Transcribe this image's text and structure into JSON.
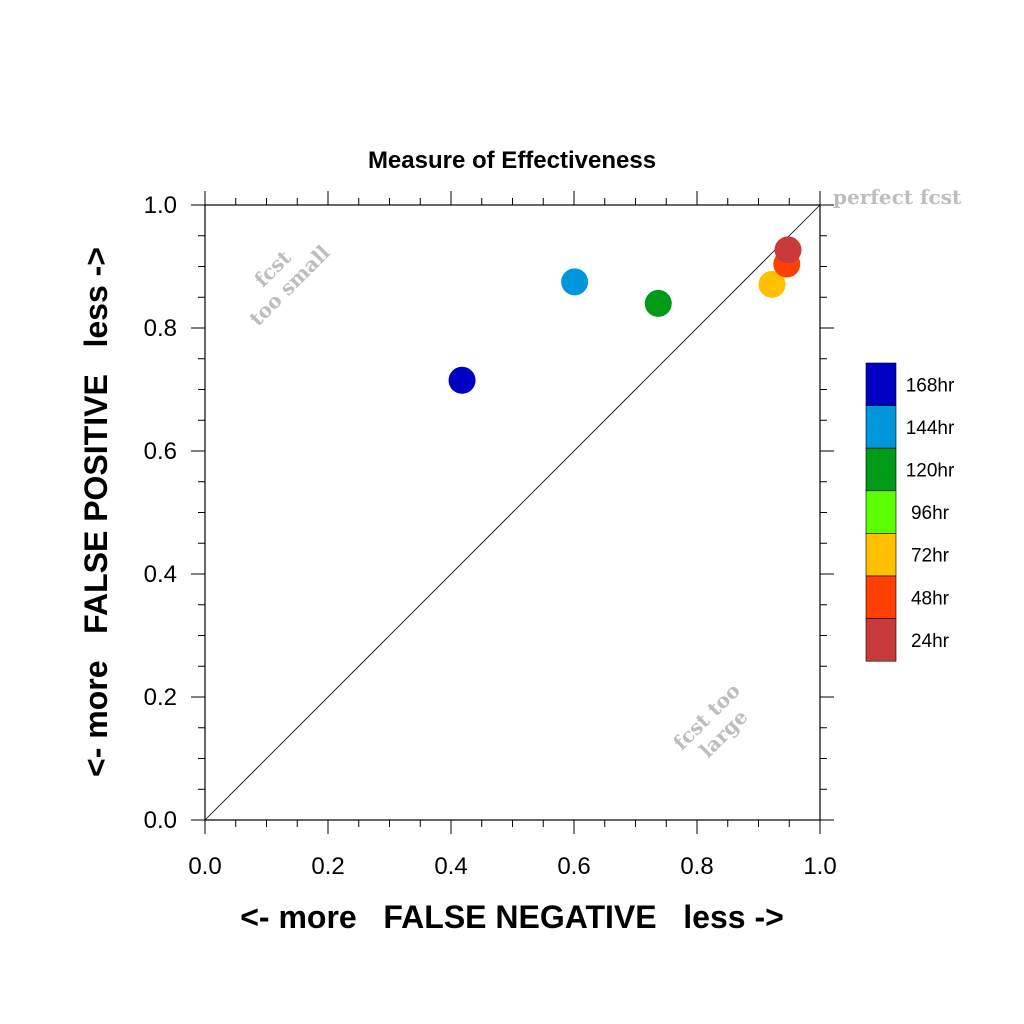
{
  "chart_data": {
    "type": "scatter",
    "title": "Measure of Effectiveness",
    "xlabel": "<- more   FALSE NEGATIVE   less ->",
    "ylabel": "<- more   FALSE POSITIVE   less ->",
    "xlim": [
      0,
      1
    ],
    "ylim": [
      0,
      1
    ],
    "x_ticks": [
      "0.0",
      "0.2",
      "0.4",
      "0.6",
      "0.8",
      "1.0"
    ],
    "y_ticks": [
      "0.0",
      "0.2",
      "0.4",
      "0.6",
      "0.8",
      "1.0"
    ],
    "grid": false,
    "diagonal_line": true,
    "annotations": {
      "perfect": "perfect fcst",
      "too_small": [
        "fcst",
        "too small"
      ],
      "too_large": [
        "fcst too",
        "large"
      ]
    },
    "legend_position": "right",
    "series": [
      {
        "name": "168hr",
        "color": "#0000c4",
        "x": 0.418,
        "y": 0.715
      },
      {
        "name": "144hr",
        "color": "#0096db",
        "x": 0.601,
        "y": 0.875
      },
      {
        "name": "120hr",
        "color": "#009b16",
        "x": 0.737,
        "y": 0.84
      },
      {
        "name": "96hr",
        "color": "#5cff00",
        "x": null,
        "y": null
      },
      {
        "name": "72hr",
        "color": "#ffc000",
        "x": 0.922,
        "y": 0.871
      },
      {
        "name": "48hr",
        "color": "#ff4000",
        "x": 0.946,
        "y": 0.904
      },
      {
        "name": "24hr",
        "color": "#c83a3a",
        "x": 0.948,
        "y": 0.927
      }
    ]
  }
}
